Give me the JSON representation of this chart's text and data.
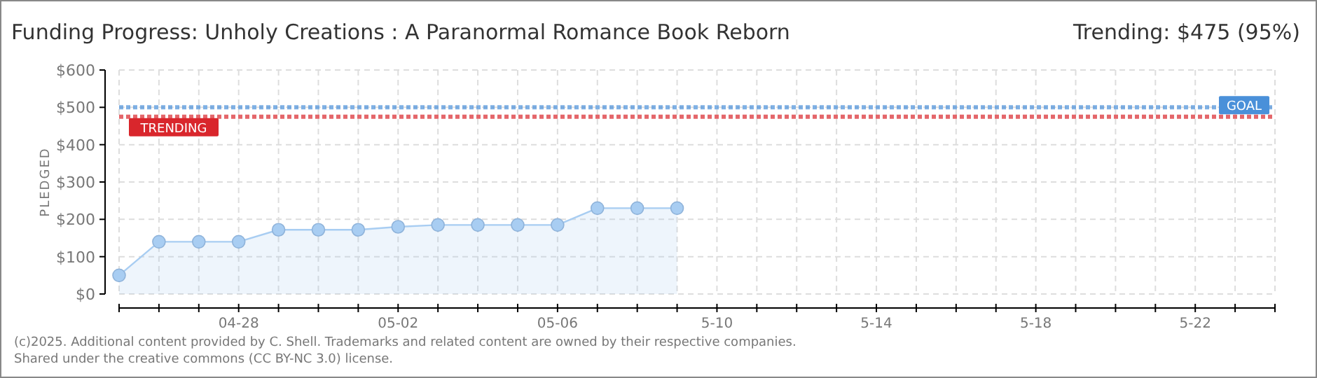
{
  "chart_data": {
    "type": "area",
    "title": "Funding Progress: Unholy Creations : A Paranormal Romance Book Reborn",
    "subtitle": "Trending: $475 (95%)",
    "ylabel": "PLEDGED",
    "x": [
      "--04-25",
      "--04-26",
      "--04-27",
      "--04-28",
      "--04-29",
      "--04-30",
      "--05-01",
      "--05-02",
      "--05-03",
      "--05-04",
      "--05-05",
      "--05-06",
      "--05-07",
      "--05-08",
      "--05-09"
    ],
    "series": [
      {
        "color": "#a8cdf2",
        "values": [
          50,
          140,
          140,
          140,
          172,
          172,
          172,
          180,
          185,
          185,
          185,
          185,
          230,
          230,
          230
        ]
      }
    ],
    "xlim": [
      "--04-25",
      "--05-24"
    ],
    "xticks": [
      {
        "value": "--04-25",
        "label": null
      },
      {
        "value": "--04-26",
        "label": null
      },
      {
        "value": "--04-27",
        "label": null
      },
      {
        "value": "--04-28",
        "label": "04-28"
      },
      {
        "value": "--04-29",
        "label": null
      },
      {
        "value": "--04-30",
        "label": null
      },
      {
        "value": "--05-01",
        "label": null
      },
      {
        "value": "--05-02",
        "label": "05-02"
      },
      {
        "value": "--05-03",
        "label": null
      },
      {
        "value": "--05-04",
        "label": null
      },
      {
        "value": "--05-05",
        "label": null
      },
      {
        "value": "--05-06",
        "label": "05-06"
      },
      {
        "value": "--05-07",
        "label": null
      },
      {
        "value": "--05-08",
        "label": null
      },
      {
        "value": "--05-09",
        "label": null
      },
      {
        "value": "--05-10",
        "label": "5-10"
      },
      {
        "value": "--05-11",
        "label": null
      },
      {
        "value": "--05-12",
        "label": null
      },
      {
        "value": "--05-13",
        "label": null
      },
      {
        "value": "--05-14",
        "label": "5-14"
      },
      {
        "value": "--05-15",
        "label": null
      },
      {
        "value": "--05-16",
        "label": null
      },
      {
        "value": "--05-17",
        "label": null
      },
      {
        "value": "--05-18",
        "label": "5-18"
      },
      {
        "value": "--05-19",
        "label": null
      },
      {
        "value": "--05-20",
        "label": null
      },
      {
        "value": "--05-21",
        "label": null
      },
      {
        "value": "--05-22",
        "label": "5-22"
      },
      {
        "value": "--05-23",
        "label": null
      },
      {
        "value": "--05-24",
        "label": null
      }
    ],
    "ylim": [
      0,
      600
    ],
    "yticks": [
      {
        "value": 0,
        "label": "$0"
      },
      {
        "value": 100,
        "label": "$100"
      },
      {
        "value": 200,
        "label": "$200"
      },
      {
        "value": 300,
        "label": "$300"
      },
      {
        "value": 400,
        "label": "$400"
      },
      {
        "value": 500,
        "label": "$500"
      },
      {
        "value": 600,
        "label": "$600"
      }
    ],
    "ref_lines": [
      {
        "axis": "y",
        "value": 500,
        "label": "GOAL",
        "color": "#4a90d9",
        "line_style": "dotted"
      },
      {
        "axis": "y",
        "value": 475,
        "label": "TRENDING",
        "color": "#d9262c",
        "line_style": "dotted"
      }
    ],
    "grid": true,
    "marker": "circle",
    "annotations": [
      "(c)2025. Additional content provided by C. Shell. Trademarks and related content are owned by their respective companies.",
      "Shared under the creative commons (CC BY-NC 3.0) license."
    ]
  }
}
